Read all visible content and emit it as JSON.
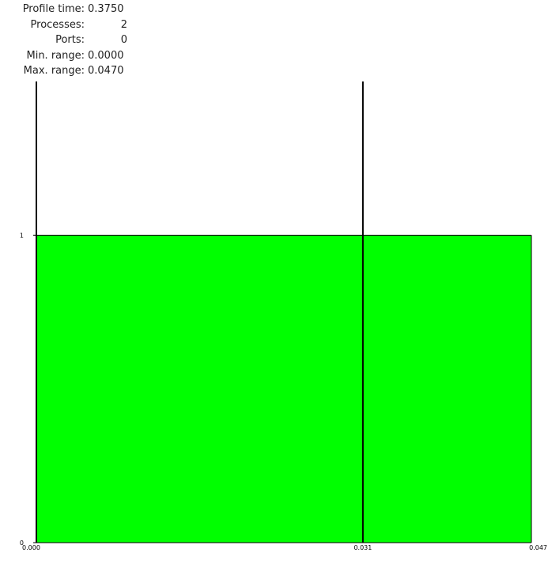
{
  "info": [
    {
      "label": "Profile time:",
      "value": "0.3750",
      "align": "left"
    },
    {
      "label": "Processes:",
      "value": "2",
      "align": "right"
    },
    {
      "label": "Ports:",
      "value": "0",
      "align": "right"
    },
    {
      "label": "Min. range:",
      "value": "0.0000",
      "align": "left"
    },
    {
      "label": "Max. range:",
      "value": "0.0470",
      "align": "left"
    }
  ],
  "chart_data": {
    "type": "area",
    "x": [
      0.0,
      0.031,
      0.047
    ],
    "x_tick_labels": [
      "0.000",
      "0.031",
      "0.047"
    ],
    "y_tick_values": [
      0,
      1
    ],
    "y_tick_labels": [
      "0",
      "1"
    ],
    "xlim": [
      0.0,
      0.047
    ],
    "ylim": [
      0,
      1.5
    ],
    "series": [
      {
        "x_start": 0.0,
        "x_end": 0.047,
        "value": 1,
        "color": "#00ff00"
      }
    ],
    "markers": [
      0.0,
      0.031
    ],
    "grid": false,
    "title": "",
    "xlabel": "",
    "ylabel": ""
  }
}
